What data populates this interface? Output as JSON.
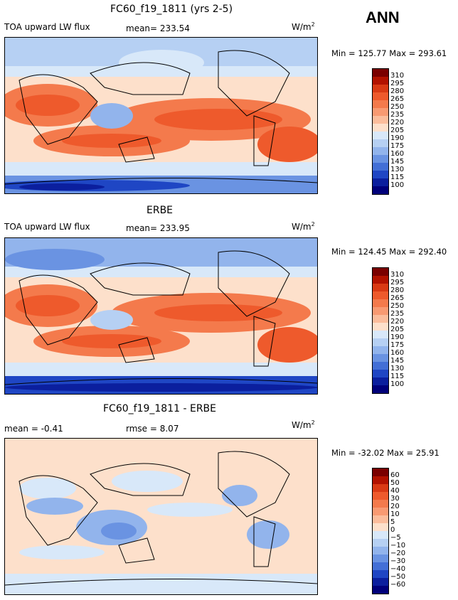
{
  "season": "ANN",
  "chart_data": [
    {
      "type": "heatmap",
      "title": "FC60_f19_1811 (yrs 2-5)",
      "variable": "TOA upward LW flux",
      "stat_line": "mean= 233.54",
      "units_base": "W/m",
      "units_exp": "2",
      "range_text": "Min = 125.77  Max = 293.61",
      "min": 125.77,
      "max": 293.61,
      "mean": 233.54,
      "levels": [
        "310",
        "295",
        "280",
        "265",
        "250",
        "235",
        "220",
        "205",
        "190",
        "175",
        "160",
        "145",
        "130",
        "115",
        "100"
      ]
    },
    {
      "type": "heatmap",
      "title": "ERBE",
      "variable": "TOA upward LW flux",
      "stat_line": "mean= 233.95",
      "units_base": "W/m",
      "units_exp": "2",
      "range_text": "Min = 124.45  Max = 292.40",
      "min": 124.45,
      "max": 292.4,
      "mean": 233.95,
      "levels": [
        "310",
        "295",
        "280",
        "265",
        "250",
        "235",
        "220",
        "205",
        "190",
        "175",
        "160",
        "145",
        "130",
        "115",
        "100"
      ]
    },
    {
      "type": "heatmap",
      "title": "FC60_f19_1811 - ERBE",
      "mean_text": "mean =   -0.41",
      "rmse_text": "rmse =    8.07",
      "units_base": "W/m",
      "units_exp": "2",
      "range_text": "Min = -32.02  Max =  25.91",
      "min": -32.02,
      "max": 25.91,
      "mean": -0.41,
      "rmse": 8.07,
      "levels": [
        "60",
        "50",
        "40",
        "30",
        "20",
        "10",
        "5",
        "0",
        "−5",
        "−10",
        "−20",
        "−30",
        "−40",
        "−50",
        "−60"
      ]
    }
  ],
  "colors": {
    "palette": [
      "#7a0000",
      "#b21200",
      "#d93a14",
      "#ee5a2c",
      "#f47a4c",
      "#f89a72",
      "#fbbd9c",
      "#fde0cb",
      "#d8e8f9",
      "#b6d0f3",
      "#92b4ec",
      "#6a93e2",
      "#436fd6",
      "#1f46c4",
      "#0b1f9e",
      "#00007a"
    ]
  }
}
